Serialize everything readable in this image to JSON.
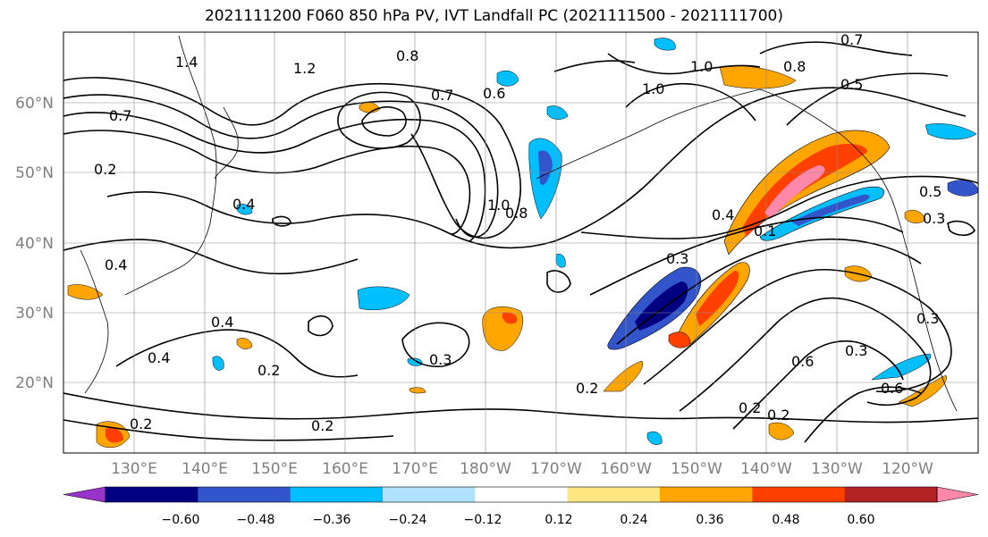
{
  "title": "2021111200 F060 850 hPa PV, IVT Landfall PC (2021111500 - 2021111700)",
  "lat_labels": [
    "60°N",
    "50°N",
    "40°N",
    "30°N",
    "20°N"
  ],
  "lon_labels": [
    "130°E",
    "140°E",
    "150°E",
    "160°E",
    "170°E",
    "180°W",
    "170°W",
    "160°W",
    "150°W",
    "140°W",
    "130°W",
    "120°W"
  ],
  "colorbar": {
    "ticks": [
      "−0.60",
      "−0.48",
      "−0.36",
      "−0.24",
      "−0.12",
      "0.12",
      "0.24",
      "0.36",
      "0.48",
      "0.60"
    ],
    "colors": [
      "#9933cc",
      "#000080",
      "#3355cc",
      "#00bfff",
      "#b0e2ff",
      "#ffffff",
      "#ffe680",
      "#ffa500",
      "#ff4000",
      "#b22222",
      "#ff88aa"
    ]
  },
  "contour_labels": [
    "1.4",
    "1.2",
    "0.8",
    "0.7",
    "0.6",
    "1.0",
    "0.8",
    "0.5",
    "0.7",
    "0.2",
    "0.4",
    "0.4",
    "0.3",
    "1.0",
    "0.8",
    "0.4",
    "0.1",
    "0.5",
    "0.3",
    "0.4",
    "0.4",
    "0.2",
    "0.3",
    "0.2",
    "0.2",
    "0.6",
    "0.3",
    "0.6",
    "0.2",
    "0.2",
    "0.3",
    "0.2",
    "1.0",
    "0.7"
  ]
}
